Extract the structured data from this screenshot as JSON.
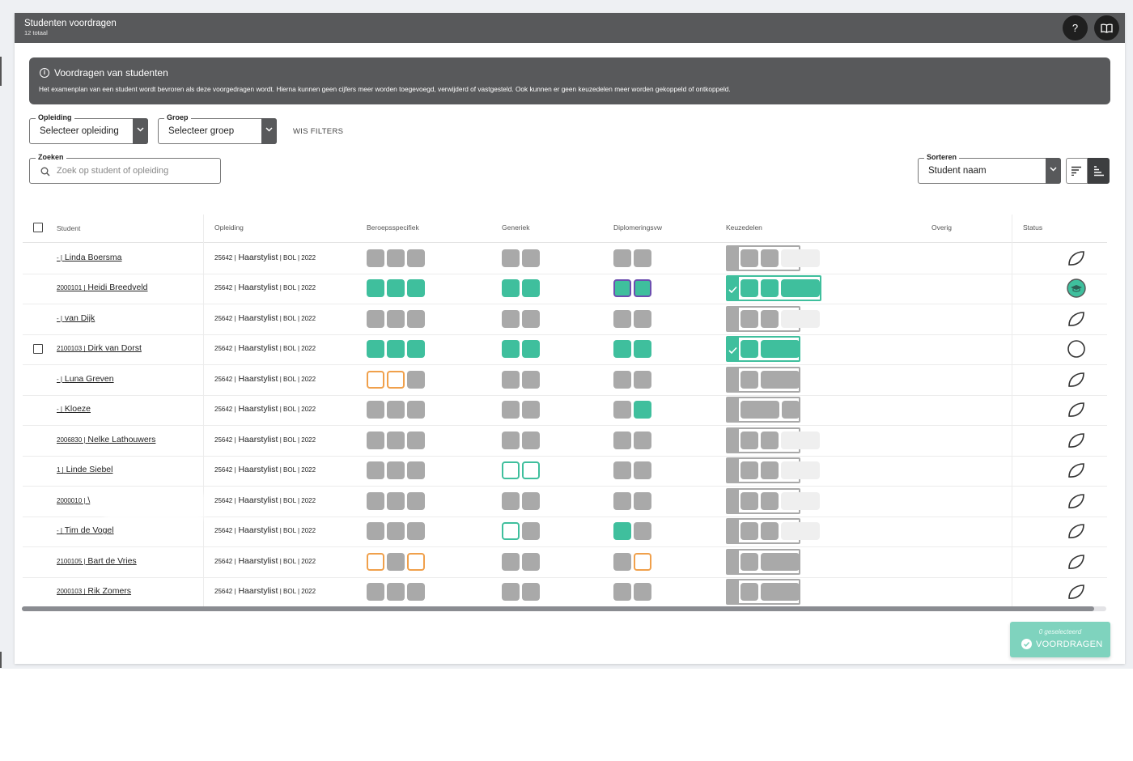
{
  "window": {
    "title": "Studenten voordragen",
    "subtitle": "12 totaal",
    "help_label": "?"
  },
  "info": {
    "title": "Voordragen van studenten",
    "text": "Het examenplan van een student wordt bevroren als deze voorgedragen wordt. Hierna kunnen geen cijfers meer worden toegevoegd, verwijderd of vastgesteld. Ook kunnen er geen keuzedelen meer worden gekoppeld of ontkoppeld."
  },
  "filters": {
    "opleiding": {
      "label": "Opleiding",
      "value": "Selecteer opleiding"
    },
    "groep": {
      "label": "Groep",
      "value": "Selecteer groep"
    },
    "wis": "WIS FILTERS",
    "zoeken": {
      "label": "Zoeken",
      "placeholder": "Zoek op student of opleiding"
    },
    "sorteren": {
      "label": "Sorteren",
      "value": "Student naam"
    }
  },
  "table": {
    "headers": [
      "Student",
      "Opleiding",
      "Beroepsspecifiek",
      "Generiek",
      "Diplomeringsvw",
      "Keuzedelen",
      "Overig",
      "Status"
    ],
    "rows": [
      {
        "code": "- |",
        "name": "Linda Boersma",
        "opl_code": "25642 |",
        "opl_name": "Haarstylist",
        "opl_meta": " | BOL | 2022"
      },
      {
        "code": "2000101 |",
        "name": "Heidi Breedveld",
        "opl_code": "25642 |",
        "opl_name": "Haarstylist",
        "opl_meta": " | BOL | 2022"
      },
      {
        "code": "- |",
        "name": "van Dijk",
        "opl_code": "25642 |",
        "opl_name": "Haarstylist",
        "opl_meta": " | BOL | 2022"
      },
      {
        "code": "2100103 |",
        "name": "Dirk van Dorst",
        "opl_code": "25642 |",
        "opl_name": "Haarstylist",
        "opl_meta": " | BOL | 2022"
      },
      {
        "code": "- |",
        "name": "Luna Greven",
        "opl_code": "25642 |",
        "opl_name": "Haarstylist",
        "opl_meta": " | BOL | 2022"
      },
      {
        "code": "- |",
        "name": "Kloeze",
        "opl_code": "25642 |",
        "opl_name": "Haarstylist",
        "opl_meta": " | BOL | 2022"
      },
      {
        "code": "2006830 |",
        "name": "Nelke Lathouwers",
        "opl_code": "25642 |",
        "opl_name": "Haarstylist",
        "opl_meta": " | BOL | 2022"
      },
      {
        "code": "1 |",
        "name": "Linde Siebel",
        "opl_code": "25642 |",
        "opl_name": "Haarstylist",
        "opl_meta": " | BOL | 2022"
      },
      {
        "code": "2000010 |",
        "name": "\\",
        "opl_code": "25642 |",
        "opl_name": "Haarstylist",
        "opl_meta": " | BOL | 2022"
      },
      {
        "code": "- |",
        "name": "Tim de Vogel",
        "opl_code": "25642 |",
        "opl_name": "Haarstylist",
        "opl_meta": " | BOL | 2022"
      },
      {
        "code": "2100105 |",
        "name": "Bart de Vries",
        "opl_code": "25642 |",
        "opl_name": "Haarstylist",
        "opl_meta": " | BOL | 2022"
      },
      {
        "code": "2000103 |",
        "name": "Rik Zomers",
        "opl_code": "25642 |",
        "opl_name": "Haarstylist",
        "opl_meta": " | BOL | 2022"
      }
    ]
  },
  "footer": {
    "selected": "0 geselecteerd",
    "button": "VOORDRAGEN"
  },
  "colors": {
    "teal": "#3fbf9d",
    "grey": "#a9a9a9",
    "orange": "#f0a04b",
    "purple": "#6d4fb0",
    "header": "#58595b"
  }
}
